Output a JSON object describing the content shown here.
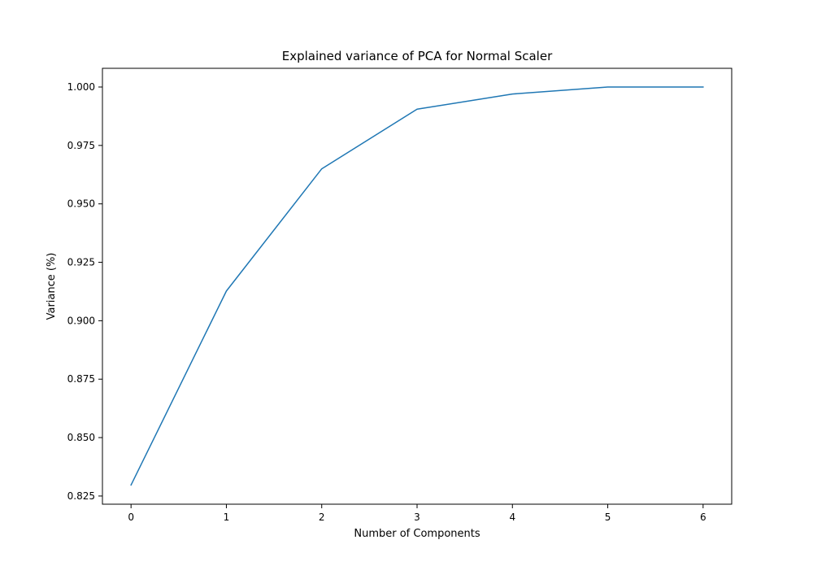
{
  "chart_data": {
    "type": "line",
    "title": "Explained variance of PCA for Normal Scaler",
    "xlabel": "Number of Components",
    "ylabel": "Variance (%)",
    "x": [
      0,
      1,
      2,
      3,
      4,
      5,
      6
    ],
    "series": [
      {
        "values": [
          0.8297,
          0.9127,
          0.965,
          0.9905,
          0.997,
          1.0,
          1.0
        ],
        "color": "#1f77b4"
      }
    ],
    "xlim": [
      -0.3,
      6.3
    ],
    "ylim": [
      0.8215,
      1.008
    ],
    "xticks": [
      0,
      1,
      2,
      3,
      4,
      5,
      6
    ],
    "xtick_labels": [
      "0",
      "1",
      "2",
      "3",
      "4",
      "5",
      "6"
    ],
    "yticks": [
      0.825,
      0.85,
      0.875,
      0.9,
      0.925,
      0.95,
      0.975,
      1.0
    ],
    "ytick_labels": [
      "0.825",
      "0.850",
      "0.875",
      "0.900",
      "0.925",
      "0.950",
      "0.975",
      "1.000"
    ],
    "grid": false,
    "legend": "none"
  }
}
